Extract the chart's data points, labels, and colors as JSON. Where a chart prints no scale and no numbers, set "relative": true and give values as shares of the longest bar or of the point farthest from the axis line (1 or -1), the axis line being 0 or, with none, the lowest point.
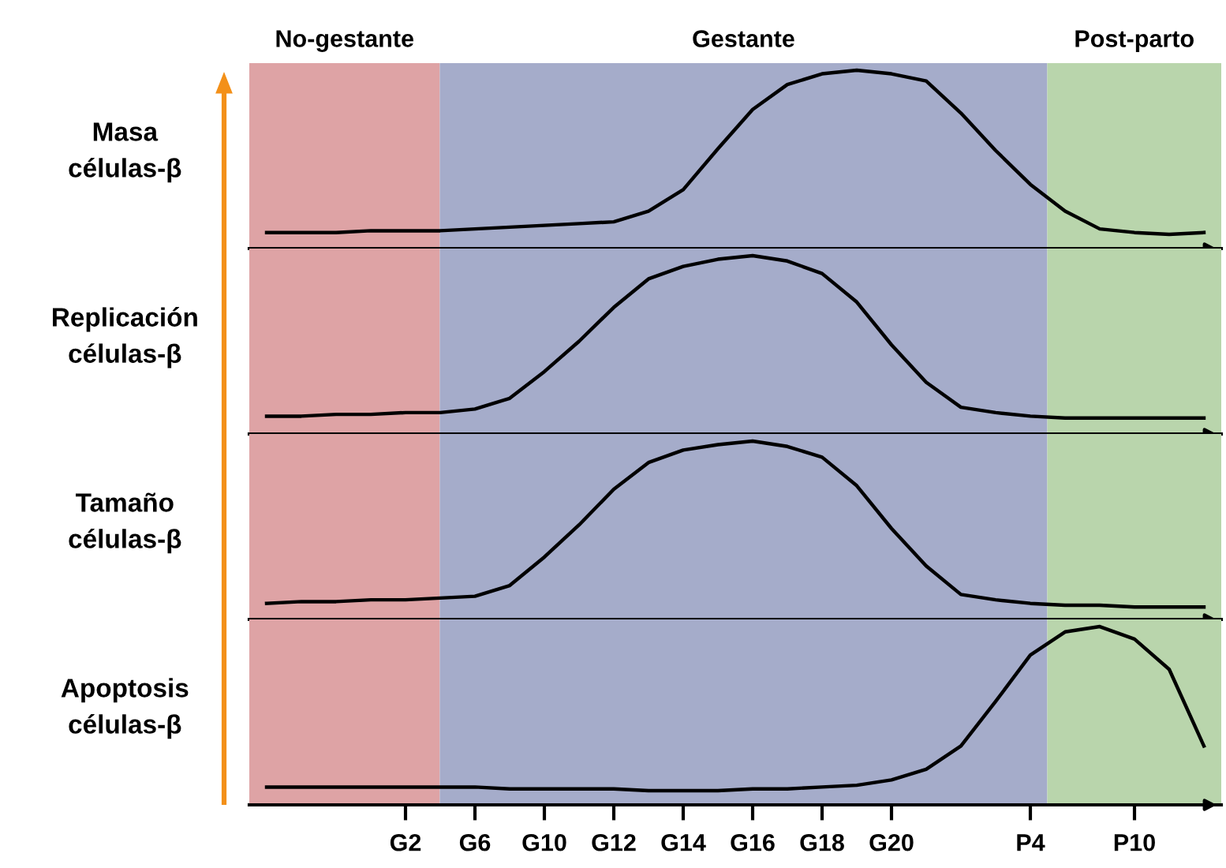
{
  "chart_data": [
    {
      "type": "line",
      "ylabel": "Masa\ncélulas-β",
      "relative": true,
      "tick_labels": false,
      "color": "#000000",
      "categories": [
        null,
        null,
        null,
        null,
        null,
        null,
        null,
        null,
        null,
        null,
        null,
        null,
        null,
        null,
        null,
        null,
        null,
        null,
        null,
        null,
        null,
        null,
        null,
        null,
        null,
        null,
        null,
        null
      ],
      "values": [
        0.09,
        0.09,
        0.09,
        0.1,
        0.1,
        0.1,
        0.11,
        0.12,
        0.13,
        0.14,
        0.15,
        0.21,
        0.33,
        0.56,
        0.78,
        0.92,
        0.98,
        1,
        0.98,
        0.94,
        0.76,
        0.55,
        0.36,
        0.21,
        0.11,
        0.09,
        0.08,
        0.09
      ],
      "annotations": [
        "No-gestante",
        "Gestante",
        "Post-parto"
      ]
    },
    {
      "type": "line",
      "ylabel": "Replicación\ncélulas-β",
      "relative": true,
      "tick_labels": false,
      "color": "#000000",
      "categories": [
        null,
        null,
        null,
        null,
        null,
        null,
        null,
        null,
        null,
        null,
        null,
        null,
        null,
        null,
        null,
        null,
        null,
        null,
        null,
        null,
        null,
        null,
        null,
        null,
        null,
        null,
        null,
        null
      ],
      "values": [
        0.1,
        0.1,
        0.11,
        0.11,
        0.12,
        0.12,
        0.14,
        0.2,
        0.35,
        0.52,
        0.71,
        0.87,
        0.94,
        0.98,
        1,
        0.97,
        0.9,
        0.74,
        0.5,
        0.29,
        0.15,
        0.12,
        0.1,
        0.09,
        0.09,
        0.09,
        0.09,
        0.09
      ]
    },
    {
      "type": "line",
      "ylabel": "Tamaño\ncélulas-β",
      "relative": true,
      "tick_labels": false,
      "color": "#000000",
      "categories": [
        null,
        null,
        null,
        null,
        null,
        null,
        null,
        null,
        null,
        null,
        null,
        null,
        null,
        null,
        null,
        null,
        null,
        null,
        null,
        null,
        null,
        null,
        null,
        null,
        null,
        null,
        null,
        null
      ],
      "values": [
        0.09,
        0.1,
        0.1,
        0.11,
        0.11,
        0.12,
        0.13,
        0.19,
        0.35,
        0.53,
        0.73,
        0.88,
        0.95,
        0.98,
        1,
        0.97,
        0.91,
        0.75,
        0.51,
        0.3,
        0.14,
        0.11,
        0.09,
        0.08,
        0.08,
        0.07,
        0.07,
        0.07
      ]
    },
    {
      "type": "line",
      "ylabel": "Apoptosis\ncélulas-β",
      "relative": true,
      "tick_labels": "x",
      "color": "#000000",
      "categories": [
        null,
        null,
        null,
        null,
        "G2",
        null,
        "G6",
        null,
        "G10",
        null,
        "G12",
        null,
        "G14",
        null,
        "G16",
        null,
        "G18",
        null,
        "G20",
        null,
        null,
        null,
        "P4",
        null,
        null,
        "P10",
        null,
        null
      ],
      "values": [
        0.1,
        0.1,
        0.1,
        0.1,
        0.1,
        0.1,
        0.1,
        0.09,
        0.09,
        0.09,
        0.09,
        0.08,
        0.08,
        0.08,
        0.09,
        0.09,
        0.1,
        0.11,
        0.14,
        0.2,
        0.33,
        0.58,
        0.84,
        0.97,
        1,
        0.93,
        0.76,
        0.33
      ]
    }
  ]
}
